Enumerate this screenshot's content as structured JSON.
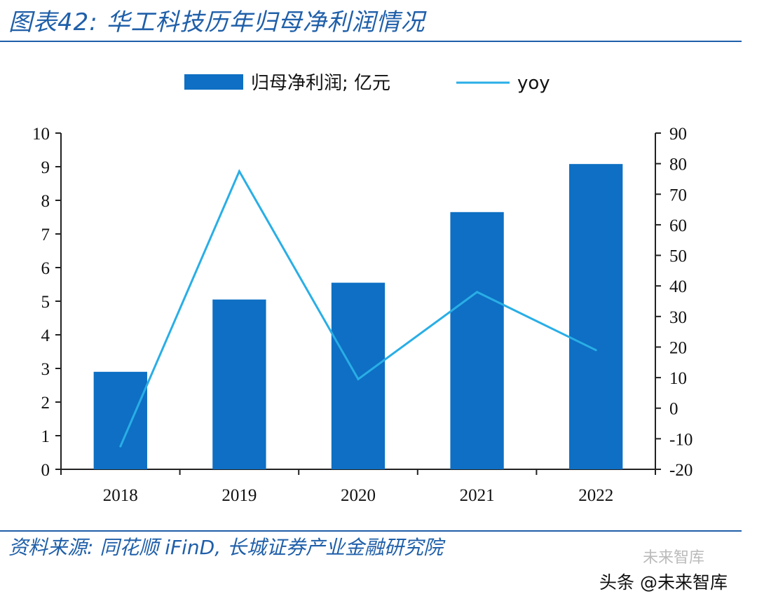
{
  "figure_title": "图表42:  华工科技历年归母净利润情况",
  "source": "资料来源: 同花顺 iFinD, 长城证券产业金融研究院",
  "watermark": "头条 @未来智库",
  "watermark_logo": "未来智库",
  "colors": {
    "bar": "#0e6fc4",
    "line": "#29aee6",
    "title": "#1f5fa9"
  },
  "chart_data": {
    "type": "bar",
    "categories": [
      "2018",
      "2019",
      "2020",
      "2021",
      "2022"
    ],
    "series": [
      {
        "name": "归母净利润; 亿元",
        "type": "bar",
        "axis": "left",
        "values": [
          2.9,
          5.05,
          5.55,
          7.65,
          9.08
        ]
      },
      {
        "name": "yoy",
        "type": "line",
        "axis": "right",
        "values": [
          -12.5,
          77.5,
          9.5,
          38.0,
          19.0
        ]
      }
    ],
    "y_left": {
      "range": [
        0,
        10
      ],
      "ticks": [
        "0",
        "1",
        "2",
        "3",
        "4",
        "5",
        "6",
        "7",
        "8",
        "9",
        "10"
      ]
    },
    "y_right": {
      "range": [
        -20,
        90
      ],
      "ticks": [
        "-20",
        "-10",
        "0",
        "10",
        "20",
        "30",
        "40",
        "50",
        "60",
        "70",
        "80",
        "90"
      ]
    },
    "legend": {
      "placement": "top-center"
    },
    "grid": false
  }
}
